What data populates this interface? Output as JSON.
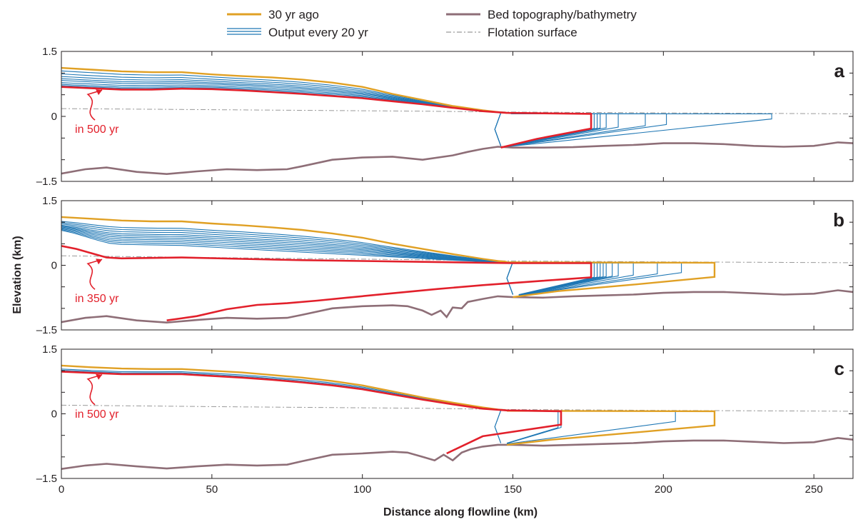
{
  "chart_data": {
    "type": "line",
    "ylabel": "Elevation (km)",
    "xlabel": "Distance along flowline (km)",
    "xlim": [
      0,
      263
    ],
    "xticks": [
      0,
      50,
      100,
      150,
      200,
      250
    ],
    "ylim": [
      -1.5,
      1.5
    ],
    "yticks": [
      -1.5,
      0,
      1.5
    ],
    "ytick_labels": [
      "–1.5",
      "0",
      "1.5"
    ],
    "grid": false,
    "legend_position": "top-center",
    "legend": [
      {
        "key": "initial",
        "label": "30 yr ago",
        "color": "#e0a024"
      },
      {
        "key": "output",
        "label": "Output every 20 yr",
        "color": "#1f77b4"
      },
      {
        "key": "bed",
        "label": "Bed topography/bathymetry",
        "color": "#8e6e77"
      },
      {
        "key": "flotation",
        "label": "Flotation surface",
        "color": "#9a9a9a"
      }
    ],
    "colors": {
      "initial": "#e0a024",
      "output": "#1f77b4",
      "final": "#e2202b",
      "bed": "#8e6e77",
      "flotation": "#9a9a9a"
    },
    "panels": [
      {
        "letter": "a",
        "annotation": "in 500 yr",
        "bed": {
          "x": [
            0,
            8,
            15,
            25,
            35,
            45,
            55,
            65,
            75,
            80,
            90,
            100,
            110,
            120,
            130,
            135,
            140,
            145,
            150,
            160,
            170,
            180,
            190,
            200,
            210,
            220,
            230,
            240,
            250,
            258,
            263
          ],
          "y": [
            -1.32,
            -1.22,
            -1.18,
            -1.28,
            -1.33,
            -1.27,
            -1.22,
            -1.24,
            -1.22,
            -1.15,
            -1,
            -0.95,
            -0.93,
            -1.0,
            -0.9,
            -0.82,
            -0.75,
            -0.7,
            -0.72,
            -0.72,
            -0.71,
            -0.68,
            -0.66,
            -0.62,
            -0.62,
            -0.64,
            -0.68,
            -0.7,
            -0.68,
            -0.6,
            -0.62
          ]
        },
        "flotation": {
          "x": [
            0,
            60,
            120,
            150,
            200,
            263
          ],
          "y": [
            0.18,
            0.15,
            0.12,
            0.1,
            0.08,
            0.06
          ]
        },
        "initial": {
          "surface": {
            "x": [
              0,
              10,
              20,
              30,
              40,
              50,
              60,
              70,
              80,
              90,
              100,
              110,
              120,
              130,
              140,
              145,
              148
            ],
            "y": [
              1.12,
              1.08,
              1.04,
              1.02,
              1.02,
              0.97,
              0.93,
              0.9,
              0.85,
              0.78,
              0.68,
              0.52,
              0.38,
              0.24,
              0.14,
              0.1,
              0.08
            ]
          },
          "front_x": null,
          "front_top": null,
          "front_base": null
        },
        "final": {
          "surface": {
            "x": [
              0,
              10,
              20,
              30,
              40,
              50,
              60,
              70,
              80,
              90,
              100,
              110,
              120,
              130,
              140,
              148
            ],
            "y": [
              0.68,
              0.65,
              0.62,
              0.62,
              0.64,
              0.63,
              0.6,
              0.56,
              0.52,
              0.47,
              0.42,
              0.35,
              0.28,
              0.2,
              0.12,
              0.08
            ]
          },
          "shelf_x": [
            148,
            176
          ],
          "shelf_top": 0.06,
          "front_base": -0.28,
          "gl_x": 146,
          "gl_y": -0.72
        },
        "outputs": [
          {
            "s0": 1.05,
            "front_x": 236
          },
          {
            "s0": 0.98,
            "front_x": 201
          },
          {
            "s0": 0.92,
            "front_x": 194
          },
          {
            "s0": 0.87,
            "front_x": 185
          },
          {
            "s0": 0.83,
            "front_x": 181
          },
          {
            "s0": 0.78,
            "front_x": 179
          },
          {
            "s0": 0.74,
            "front_x": 178
          },
          {
            "s0": 0.71,
            "front_x": 177
          }
        ]
      },
      {
        "letter": "b",
        "annotation": "in 350 yr",
        "bed": {
          "x": [
            0,
            8,
            15,
            25,
            35,
            45,
            55,
            65,
            75,
            80,
            90,
            100,
            110,
            115,
            120,
            123,
            126,
            128,
            130,
            133,
            135,
            140,
            145,
            150,
            160,
            170,
            180,
            190,
            200,
            210,
            220,
            230,
            240,
            250,
            258,
            263
          ],
          "y": [
            -1.32,
            -1.22,
            -1.18,
            -1.28,
            -1.33,
            -1.27,
            -1.22,
            -1.24,
            -1.22,
            -1.15,
            -1.0,
            -0.95,
            -0.93,
            -0.95,
            -1.05,
            -1.15,
            -1.05,
            -1.2,
            -0.98,
            -1.0,
            -0.85,
            -0.78,
            -0.72,
            -0.74,
            -0.75,
            -0.72,
            -0.7,
            -0.68,
            -0.64,
            -0.62,
            -0.62,
            -0.65,
            -0.68,
            -0.66,
            -0.58,
            -0.62
          ]
        },
        "flotation": {
          "x": [
            0,
            60,
            120,
            150,
            200,
            263
          ],
          "y": [
            0.22,
            0.17,
            0.13,
            0.1,
            0.08,
            0.06
          ]
        },
        "initial": {
          "surface": {
            "x": [
              0,
              10,
              20,
              30,
              40,
              50,
              60,
              70,
              80,
              90,
              100,
              110,
              120,
              130,
              140,
              145,
              148
            ],
            "y": [
              1.12,
              1.08,
              1.04,
              1.02,
              1.02,
              0.97,
              0.93,
              0.88,
              0.82,
              0.74,
              0.64,
              0.5,
              0.38,
              0.26,
              0.15,
              0.1,
              0.08
            ]
          },
          "front_x": 217,
          "front_top": 0.06,
          "front_base": -0.27,
          "gl_x": 150,
          "gl_y": -0.74
        },
        "final": {
          "surface": {
            "x": [
              0,
              5,
              10,
              15,
              20,
              40,
              60,
              80,
              100,
              120,
              140,
              150
            ],
            "y": [
              0.45,
              0.38,
              0.28,
              0.18,
              0.16,
              0.18,
              0.15,
              0.12,
              0.1,
              0.08,
              0.06,
              0.05
            ]
          },
          "shelf_x": [
            150,
            176
          ],
          "shelf_top": 0.05,
          "front_base": -0.28,
          "gl_x": 35,
          "gl_y": -1.28,
          "base": {
            "x": [
              35,
              45,
              55,
              65,
              75,
              85,
              95,
              110,
              125,
              140,
              160,
              176
            ],
            "y": [
              -1.28,
              -1.18,
              -1.02,
              -0.92,
              -0.88,
              -0.82,
              -0.75,
              -0.65,
              -0.55,
              -0.46,
              -0.36,
              -0.28
            ]
          }
        },
        "outputs": [
          {
            "s0": 1.02,
            "front_x": 206
          },
          {
            "s0": 0.99,
            "front_x": 198
          },
          {
            "s0": 0.96,
            "front_x": 190
          },
          {
            "s0": 0.93,
            "front_x": 185
          },
          {
            "s0": 0.91,
            "front_x": 183
          },
          {
            "s0": 0.89,
            "front_x": 181
          },
          {
            "s0": 0.87,
            "front_x": 180
          },
          {
            "s0": 0.85,
            "front_x": 179
          },
          {
            "s0": 0.83,
            "front_x": 178
          },
          {
            "s0": 0.81,
            "front_x": 177
          }
        ]
      },
      {
        "letter": "c",
        "annotation": "in 500 yr",
        "bed": {
          "x": [
            0,
            8,
            15,
            25,
            35,
            45,
            55,
            65,
            75,
            80,
            90,
            100,
            110,
            115,
            120,
            124,
            127,
            130,
            133,
            136,
            140,
            145,
            150,
            160,
            170,
            180,
            190,
            200,
            210,
            220,
            230,
            240,
            250,
            258,
            263
          ],
          "y": [
            -1.28,
            -1.2,
            -1.16,
            -1.22,
            -1.27,
            -1.22,
            -1.18,
            -1.2,
            -1.18,
            -1.1,
            -0.95,
            -0.92,
            -0.88,
            -0.9,
            -1.0,
            -1.08,
            -0.95,
            -1.08,
            -0.9,
            -0.82,
            -0.76,
            -0.72,
            -0.72,
            -0.74,
            -0.72,
            -0.7,
            -0.68,
            -0.64,
            -0.62,
            -0.62,
            -0.65,
            -0.68,
            -0.66,
            -0.56,
            -0.6
          ]
        },
        "flotation": {
          "x": [
            0,
            60,
            120,
            150,
            200,
            263
          ],
          "y": [
            0.2,
            0.16,
            0.13,
            0.1,
            0.08,
            0.06
          ]
        },
        "initial": {
          "surface": {
            "x": [
              0,
              10,
              20,
              30,
              40,
              50,
              60,
              70,
              80,
              90,
              100,
              110,
              120,
              130,
              140,
              145,
              148
            ],
            "y": [
              1.12,
              1.08,
              1.05,
              1.04,
              1.04,
              1.0,
              0.96,
              0.9,
              0.84,
              0.76,
              0.66,
              0.52,
              0.38,
              0.26,
              0.15,
              0.1,
              0.08
            ]
          },
          "front_x": 217,
          "front_top": 0.06,
          "front_base": -0.27,
          "gl_x": 148,
          "gl_y": -0.72
        },
        "final": {
          "surface": {
            "x": [
              0,
              10,
              20,
              30,
              40,
              50,
              60,
              70,
              80,
              90,
              100,
              110,
              120,
              130,
              140,
              148
            ],
            "y": [
              0.98,
              0.95,
              0.92,
              0.92,
              0.92,
              0.88,
              0.84,
              0.79,
              0.73,
              0.66,
              0.57,
              0.45,
              0.33,
              0.22,
              0.12,
              0.08
            ]
          },
          "shelf_x": [
            148,
            166
          ],
          "shelf_top": 0.06,
          "front_base": -0.25,
          "gl_x": 128,
          "gl_y": -0.92
        },
        "outputs": [
          {
            "s0": 1.04,
            "front_x": 204
          },
          {
            "s0": 1.01,
            "front_x": 166
          },
          {
            "s0": 0.99,
            "front_x": 165
          }
        ]
      }
    ]
  }
}
